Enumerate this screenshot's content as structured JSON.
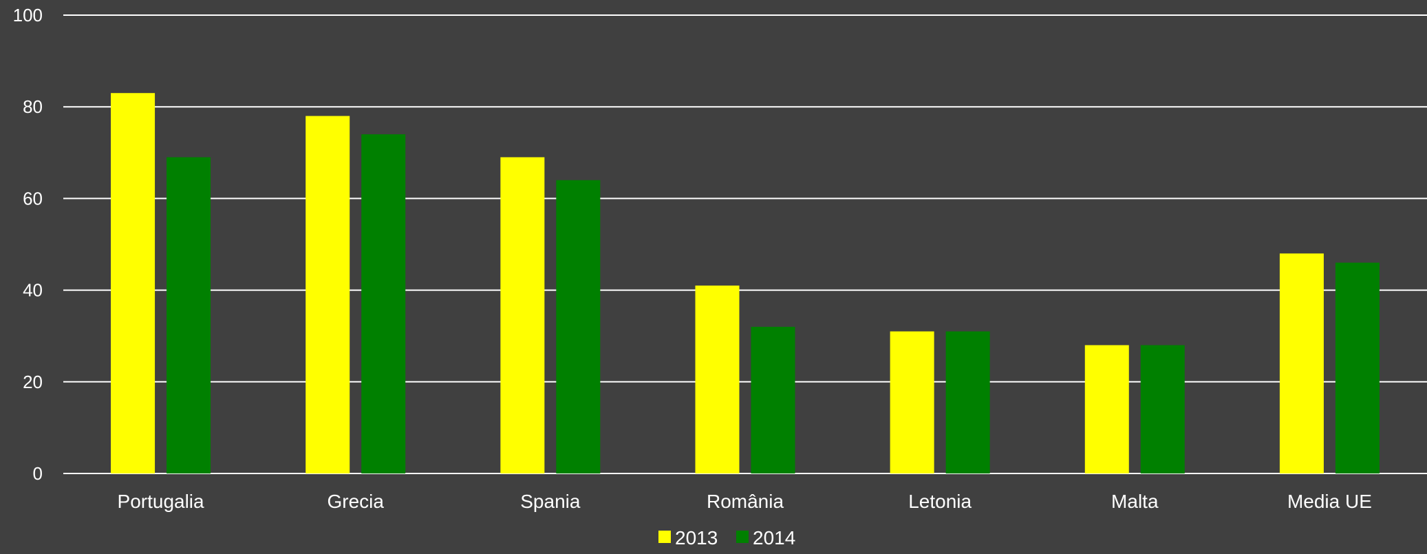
{
  "chart_data": {
    "type": "bar",
    "categories": [
      "Portugalia",
      "Grecia",
      "Spania",
      "România",
      "Letonia",
      "Malta",
      "Media UE"
    ],
    "series": [
      {
        "name": "2013",
        "color": "#ffff00",
        "values": [
          83,
          78,
          69,
          41,
          31,
          28,
          48
        ]
      },
      {
        "name": "2014",
        "color": "#008000",
        "values": [
          69,
          74,
          64,
          32,
          31,
          28,
          46
        ]
      }
    ],
    "ylim": [
      0,
      100
    ],
    "yticks": [
      0,
      20,
      40,
      60,
      80,
      100
    ],
    "grid": true,
    "legend_position": "bottom-center",
    "background": "#404040",
    "gridline_color": "#ffffff",
    "text_color": "#ffffff"
  }
}
